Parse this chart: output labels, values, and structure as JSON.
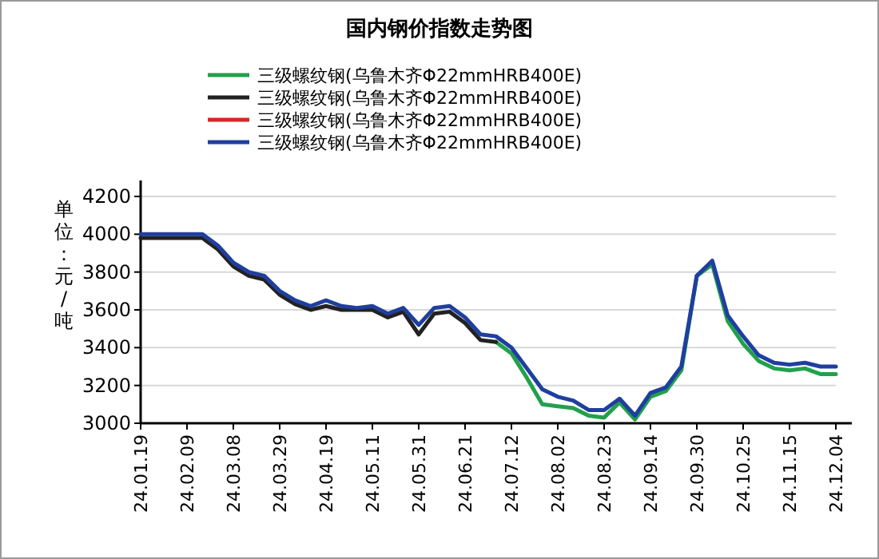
{
  "chart_data": {
    "type": "line",
    "title": "国内钢价指数走势图",
    "ylabel": "单位：元/吨",
    "categories": [
      "24.01.19",
      null,
      null,
      "24.02.09",
      null,
      null,
      "24.03.08",
      null,
      null,
      "24.03.29",
      null,
      null,
      "24.04.19",
      null,
      null,
      "24.05.11",
      null,
      null,
      "24.05.31",
      null,
      null,
      "24.06.21",
      null,
      null,
      "24.07.12",
      null,
      null,
      "24.08.02",
      null,
      null,
      "24.08.23",
      null,
      null,
      "24.09.14",
      null,
      null,
      "24.09.30",
      null,
      null,
      "24.10.25",
      null,
      null,
      "24.11.15",
      null,
      null,
      "24.12.04"
    ],
    "series": [
      {
        "name": "三级螺纹钢(乌鲁木齐Φ22mmHRB400E)",
        "color": "#22a04b",
        "values": [
          null,
          null,
          null,
          null,
          null,
          null,
          null,
          null,
          null,
          null,
          null,
          null,
          null,
          null,
          null,
          null,
          null,
          null,
          null,
          null,
          null,
          null,
          null,
          3430,
          3370,
          3240,
          3100,
          3090,
          3080,
          3040,
          3030,
          3110,
          3020,
          3140,
          3170,
          3280,
          3780,
          3840,
          3540,
          3420,
          3330,
          3290,
          3280,
          3290,
          3260,
          3260
        ]
      },
      {
        "name": "三级螺纹钢(乌鲁木齐Φ22mmHRB400E)",
        "color": "#222222",
        "values": [
          3980,
          3980,
          3980,
          3980,
          3980,
          3920,
          3830,
          3780,
          3760,
          3680,
          3630,
          3600,
          3620,
          3600,
          3600,
          3600,
          3560,
          3590,
          3470,
          3580,
          3590,
          3530,
          3440,
          3430,
          null,
          null,
          null,
          null,
          null,
          null,
          null,
          null,
          null,
          null,
          null,
          null,
          null,
          null,
          null,
          null,
          null,
          null,
          null,
          null,
          null,
          null
        ]
      },
      {
        "name": "三级螺纹钢(乌鲁木齐Φ22mmHRB400E)",
        "color": "#d62728",
        "values": [
          null,
          null,
          null,
          null,
          null,
          null,
          null,
          null,
          null,
          null,
          null,
          null,
          null,
          null,
          null,
          null,
          null,
          null,
          null,
          null,
          null,
          null,
          null,
          null,
          null,
          null,
          null,
          null,
          null,
          null,
          null,
          null,
          null,
          null,
          null,
          null,
          null,
          null,
          null,
          null,
          null,
          null,
          null,
          null,
          null,
          null
        ]
      },
      {
        "name": "三级螺纹钢(乌鲁木齐Φ22mmHRB400E)",
        "color": "#1f3f9f",
        "values": [
          4000,
          4000,
          4000,
          4000,
          4000,
          3940,
          3850,
          3800,
          3780,
          3700,
          3650,
          3620,
          3650,
          3620,
          3610,
          3620,
          3580,
          3610,
          3520,
          3610,
          3620,
          3560,
          3470,
          3460,
          3400,
          3290,
          3180,
          3140,
          3120,
          3070,
          3070,
          3130,
          3040,
          3160,
          3190,
          3300,
          3780,
          3860,
          3570,
          3460,
          3360,
          3320,
          3310,
          3320,
          3300,
          3300
        ]
      }
    ],
    "ylim": [
      3000,
      4200
    ],
    "yticks": [
      3000,
      3200,
      3400,
      3600,
      3800,
      4000,
      4200
    ],
    "grid": "y",
    "legend": "top",
    "marker": "none",
    "line_style": "solid"
  }
}
